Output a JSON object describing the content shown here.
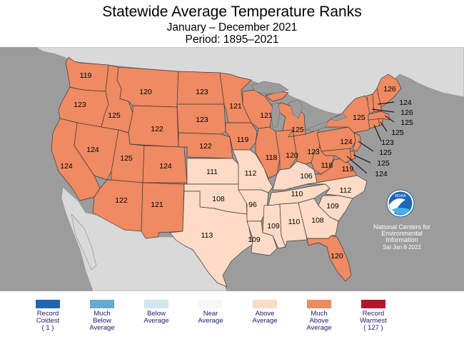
{
  "header": {
    "title": "Statewide Average Temperature Ranks",
    "subtitle": "January – December 2021",
    "period": "Period: 1895–2021"
  },
  "colors": {
    "much_above": "#ef8a62",
    "above": "#fddbc7",
    "ocean": "#9c9c9c",
    "foreign_land": "#d9d9d9",
    "border": "#3a3a3a"
  },
  "states": [
    {
      "abbr": "WA",
      "rank": "119",
      "category": "much_above"
    },
    {
      "abbr": "OR",
      "rank": "123",
      "category": "much_above"
    },
    {
      "abbr": "CA",
      "rank": "124",
      "category": "much_above"
    },
    {
      "abbr": "ID",
      "rank": "125",
      "category": "much_above"
    },
    {
      "abbr": "NV",
      "rank": "124",
      "category": "much_above"
    },
    {
      "abbr": "MT",
      "rank": "120",
      "category": "much_above"
    },
    {
      "abbr": "WY",
      "rank": "122",
      "category": "much_above"
    },
    {
      "abbr": "UT",
      "rank": "125",
      "category": "much_above"
    },
    {
      "abbr": "AZ",
      "rank": "122",
      "category": "much_above"
    },
    {
      "abbr": "CO",
      "rank": "124",
      "category": "much_above"
    },
    {
      "abbr": "NM",
      "rank": "121",
      "category": "much_above"
    },
    {
      "abbr": "ND",
      "rank": "123",
      "category": "much_above"
    },
    {
      "abbr": "SD",
      "rank": "123",
      "category": "much_above"
    },
    {
      "abbr": "NE",
      "rank": "122",
      "category": "much_above"
    },
    {
      "abbr": "KS",
      "rank": "111",
      "category": "above"
    },
    {
      "abbr": "OK",
      "rank": "108",
      "category": "above"
    },
    {
      "abbr": "TX",
      "rank": "113",
      "category": "above"
    },
    {
      "abbr": "MN",
      "rank": "121",
      "category": "much_above"
    },
    {
      "abbr": "IA",
      "rank": "119",
      "category": "much_above"
    },
    {
      "abbr": "MO",
      "rank": "112",
      "category": "above"
    },
    {
      "abbr": "AR",
      "rank": "96",
      "category": "above"
    },
    {
      "abbr": "LA",
      "rank": "109",
      "category": "above"
    },
    {
      "abbr": "WI",
      "rank": "121",
      "category": "much_above"
    },
    {
      "abbr": "IL",
      "rank": "118",
      "category": "much_above"
    },
    {
      "abbr": "MI",
      "rank": "125",
      "category": "much_above"
    },
    {
      "abbr": "IN",
      "rank": "120",
      "category": "much_above"
    },
    {
      "abbr": "OH",
      "rank": "123",
      "category": "much_above"
    },
    {
      "abbr": "KY",
      "rank": "106",
      "category": "above"
    },
    {
      "abbr": "TN",
      "rank": "110",
      "category": "above"
    },
    {
      "abbr": "MS",
      "rank": "109",
      "category": "above"
    },
    {
      "abbr": "AL",
      "rank": "110",
      "category": "above"
    },
    {
      "abbr": "GA",
      "rank": "108",
      "category": "above"
    },
    {
      "abbr": "FL",
      "rank": "120",
      "category": "much_above"
    },
    {
      "abbr": "SC",
      "rank": "109",
      "category": "above"
    },
    {
      "abbr": "NC",
      "rank": "112",
      "category": "above"
    },
    {
      "abbr": "VA",
      "rank": "119",
      "category": "much_above"
    },
    {
      "abbr": "WV",
      "rank": "118",
      "category": "much_above"
    },
    {
      "abbr": "PA",
      "rank": "124",
      "category": "much_above"
    },
    {
      "abbr": "NY",
      "rank": "125",
      "category": "much_above"
    },
    {
      "abbr": "ME",
      "rank": "126",
      "category": "much_above"
    },
    {
      "abbr": "NH",
      "rank": "124",
      "category": "much_above"
    },
    {
      "abbr": "VT",
      "rank": "126",
      "category": "much_above"
    },
    {
      "abbr": "MA",
      "rank": "125",
      "category": "much_above"
    },
    {
      "abbr": "RI",
      "rank": "125",
      "category": "much_above"
    },
    {
      "abbr": "CT",
      "rank": "123",
      "category": "much_above"
    },
    {
      "abbr": "NJ",
      "rank": "125",
      "category": "much_above"
    },
    {
      "abbr": "DE",
      "rank": "125",
      "category": "much_above"
    },
    {
      "abbr": "MD",
      "rank": "124",
      "category": "much_above"
    }
  ],
  "noaa": {
    "logo_text": "NOAA",
    "org_line1": "National Centers for",
    "org_line2": "Environmental",
    "org_line3": "Information",
    "date": "Sat Jan  8 2022"
  },
  "legend": [
    {
      "lines": [
        "Record",
        "Coldest",
        "( 1 )"
      ],
      "color": "#2166ac"
    },
    {
      "lines": [
        "Much",
        "Below",
        "Average"
      ],
      "color": "#67a9cf"
    },
    {
      "lines": [
        "Below",
        "Average"
      ],
      "color": "#d1e5f0"
    },
    {
      "lines": [
        "Near",
        "Average"
      ],
      "color": "#f7f7f7"
    },
    {
      "lines": [
        "Above",
        "Average"
      ],
      "color": "#fddbc7"
    },
    {
      "lines": [
        "Much",
        "Above",
        "Average"
      ],
      "color": "#ef8a62"
    },
    {
      "lines": [
        "Record",
        "Warmest",
        "( 127 )"
      ],
      "color": "#b2182b"
    }
  ]
}
